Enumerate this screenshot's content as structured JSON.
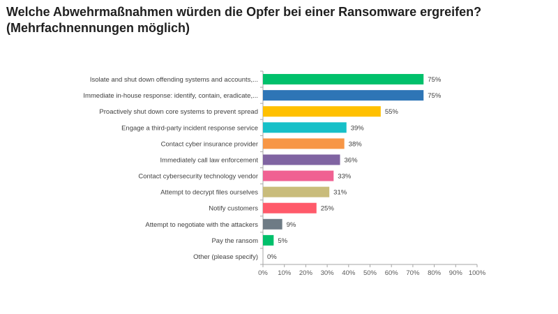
{
  "title_line1": "Welche Abwehrmaßnahmen würden die Opfer bei einer Ransomware ergreifen?",
  "title_line2": "(Mehrfachnennungen möglich)",
  "chart_data": {
    "type": "bar",
    "orientation": "horizontal",
    "categories": [
      "Isolate and shut down offending systems and accounts,...",
      "Immediate in-house response: identify, contain, eradicate,...",
      "Proactively shut down core systems to prevent spread",
      "Engage a third-party incident response service",
      "Contact cyber insurance provider",
      "Immediately call law enforcement",
      "Contact cybersecurity technology vendor",
      "Attempt to decrypt files ourselves",
      "Notify customers",
      "Attempt to negotiate with the attackers",
      "Pay the ransom",
      "Other (please specify)"
    ],
    "values": [
      75,
      75,
      55,
      39,
      38,
      36,
      33,
      31,
      25,
      9,
      5,
      0
    ],
    "value_labels": [
      "75%",
      "75%",
      "55%",
      "39%",
      "38%",
      "36%",
      "33%",
      "31%",
      "25%",
      "9%",
      "5%",
      "0%"
    ],
    "colors": [
      "#00c06b",
      "#2e75b6",
      "#ffc000",
      "#17c0c8",
      "#f79646",
      "#8064a2",
      "#f06192",
      "#c9bc7b",
      "#ff5a6a",
      "#6e7b85",
      "#00c06b",
      "#2e75b6"
    ],
    "xlim": [
      0,
      100
    ],
    "xticks": [
      "0%",
      "10%",
      "20%",
      "30%",
      "40%",
      "50%",
      "60%",
      "70%",
      "80%",
      "90%",
      "100%"
    ],
    "xlabel": "",
    "ylabel": ""
  }
}
